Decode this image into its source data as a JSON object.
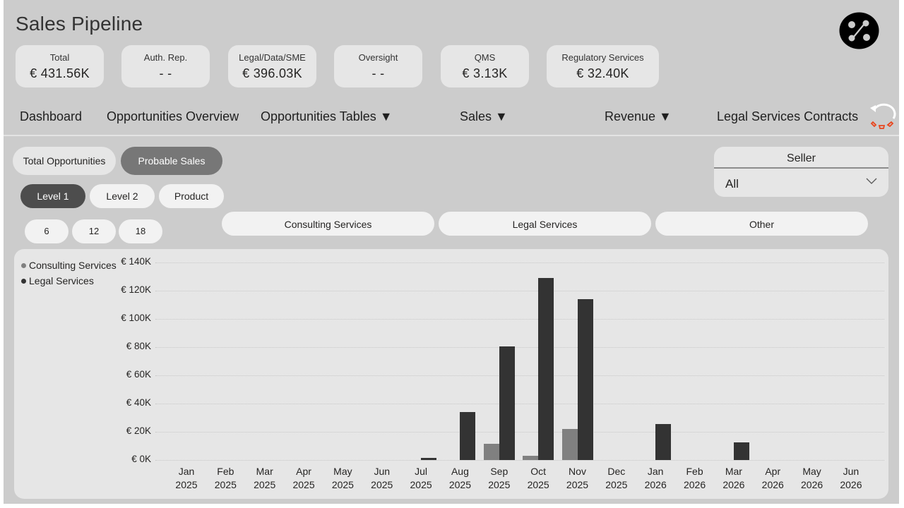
{
  "header": {
    "title": "Sales Pipeline",
    "logo_icon": "logo-circle-icon"
  },
  "kpis": [
    {
      "label": "Total",
      "value": "€ 431.56K"
    },
    {
      "label": "Auth. Rep.",
      "value": "- -"
    },
    {
      "label": "Legal/Data/SME",
      "value": "€ 396.03K"
    },
    {
      "label": "Oversight",
      "value": "- -"
    },
    {
      "label": "QMS",
      "value": "€ 3.13K"
    },
    {
      "label": "Regulatory Services",
      "value": "€ 32.40K"
    }
  ],
  "nav": {
    "items": [
      {
        "label": "Dashboard"
      },
      {
        "label": "Opportunities Overview"
      },
      {
        "label": "Opportunities Tables ▼"
      },
      {
        "label": "Sales ▼"
      },
      {
        "label": "Revenue ▼"
      },
      {
        "label": "Legal Services Contracts"
      }
    ],
    "reset_icon": "reset-filters-icon"
  },
  "filters": {
    "mode_toggle": [
      {
        "label": "Total Opportunities",
        "selected": false
      },
      {
        "label": "Probable Sales",
        "selected": true
      }
    ],
    "level_toggle": [
      {
        "label": "Level 1",
        "selected": true
      },
      {
        "label": "Level 2",
        "selected": false
      },
      {
        "label": "Product",
        "selected": false
      }
    ],
    "months_toggle": [
      {
        "label": "6"
      },
      {
        "label": "12"
      },
      {
        "label": "18"
      }
    ],
    "category_buttons": [
      {
        "label": "Consulting Services"
      },
      {
        "label": "Legal Services"
      },
      {
        "label": "Other"
      }
    ],
    "seller": {
      "title": "Seller",
      "value": "All"
    }
  },
  "colors": {
    "consulting": "#808080",
    "legal": "#333333",
    "canvas": "#cccccc",
    "panel": "#e6e6e6",
    "reset_accent": "#e8461e"
  },
  "chart_data": {
    "type": "bar",
    "title": "",
    "xlabel": "",
    "ylabel": "",
    "ylim": [
      0,
      140000
    ],
    "y_ticks": [
      "€ 0K",
      "€ 20K",
      "€ 40K",
      "€ 60K",
      "€ 80K",
      "€ 100K",
      "€ 120K",
      "€ 140K"
    ],
    "grid": true,
    "legend_position": "top-left",
    "categories": [
      [
        "Jan",
        "2025"
      ],
      [
        "Feb",
        "2025"
      ],
      [
        "Mar",
        "2025"
      ],
      [
        "Apr",
        "2025"
      ],
      [
        "May",
        "2025"
      ],
      [
        "Jun",
        "2025"
      ],
      [
        "Jul",
        "2025"
      ],
      [
        "Aug",
        "2025"
      ],
      [
        "Sep",
        "2025"
      ],
      [
        "Oct",
        "2025"
      ],
      [
        "Nov",
        "2025"
      ],
      [
        "Dec",
        "2025"
      ],
      [
        "Jan",
        "2026"
      ],
      [
        "Feb",
        "2026"
      ],
      [
        "Mar",
        "2026"
      ],
      [
        "Apr",
        "2026"
      ],
      [
        "May",
        "2026"
      ],
      [
        "Jun",
        "2026"
      ]
    ],
    "series": [
      {
        "name": "Consulting Services",
        "color": "#808080",
        "values": [
          0,
          0,
          0,
          0,
          0,
          0,
          0,
          0,
          11500,
          3000,
          22000,
          0,
          0,
          0,
          0,
          0,
          0,
          0
        ]
      },
      {
        "name": "Legal Services",
        "color": "#333333",
        "values": [
          0,
          0,
          0,
          0,
          0,
          0,
          1500,
          34000,
          80500,
          129000,
          114000,
          0,
          25500,
          0,
          12500,
          0,
          0,
          0
        ]
      }
    ]
  }
}
